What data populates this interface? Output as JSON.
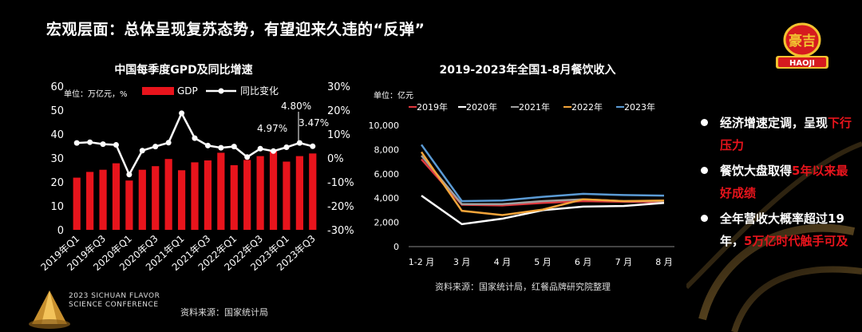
{
  "slide": {
    "title": "宏观层面：总体呈现复苏态势，有望迎来久违的“反弹”",
    "logo": {
      "cn": "豪吉",
      "en": "HAOJI"
    },
    "conference": [
      "2023 SICHUAN FLAVOR",
      "SCIENCE CONFERENCE"
    ],
    "source_left": "资料来源：国家统计局",
    "source_right": "资料来源：国家统计局，红餐品牌研究院整理"
  },
  "bullets": [
    {
      "white": "经济增速定调，呈现",
      "red": "下行压力",
      "rest": ""
    },
    {
      "white": "餐饮大盘取得",
      "red": "5年以来最好成绩",
      "rest": ""
    },
    {
      "white": "全年营收大概率超过19年，",
      "red": "5万亿时代触手可及",
      "rest": ""
    }
  ],
  "chart_data": [
    {
      "type": "bar",
      "title": "中国每季度GPD及同比增速",
      "unit_label": "单位：万亿元，%",
      "categories": [
        "2019年Q1",
        "2019年Q2",
        "2019年Q3",
        "2019年Q4",
        "2020年Q1",
        "2020年Q2",
        "2020年Q3",
        "2020年Q4",
        "2021年Q1",
        "2021年Q2",
        "2021年Q3",
        "2021年Q4",
        "2022年Q1",
        "2022年Q2",
        "2022年Q3",
        "2022年Q4",
        "2023年Q1",
        "2023年Q2",
        "2023年Q3"
      ],
      "x_tick_labels": [
        "2019年Q1",
        "2019年Q3",
        "2020年Q1",
        "2020年Q3",
        "2021年Q1",
        "2021年Q3",
        "2022年Q1",
        "2022年Q3",
        "2023年Q1",
        "2023年Q3"
      ],
      "series": [
        {
          "name": "GDP",
          "kind": "bar",
          "axis": "left",
          "color": "#e8141c",
          "values": [
            21.8,
            24.2,
            25.1,
            27.8,
            20.6,
            25.1,
            26.6,
            29.6,
            24.9,
            28.2,
            29.0,
            32.2,
            27.0,
            29.2,
            30.8,
            33.0,
            28.5,
            30.8,
            31.9
          ]
        },
        {
          "name": "同比变化",
          "kind": "line",
          "axis": "right",
          "color": "#ffffff",
          "values": [
            6.3,
            6.6,
            5.8,
            5.5,
            -6.9,
            3.1,
            4.8,
            6.4,
            18.7,
            8.3,
            5.2,
            4.3,
            4.8,
            0.4,
            3.9,
            2.9,
            4.5,
            6.3,
            4.9
          ]
        }
      ],
      "annotations": [
        "4.97%",
        "4.80%",
        "3.47%"
      ],
      "y_left": {
        "range": [
          0,
          60
        ],
        "ticks": [
          "0",
          "10",
          "20",
          "30",
          "40",
          "50",
          "60"
        ]
      },
      "y_right": {
        "range": [
          -30,
          30
        ],
        "ticks": [
          "-30%",
          "-20%",
          "-10%",
          "0%",
          "10%",
          "20%",
          "30%"
        ]
      }
    },
    {
      "type": "line",
      "title": "2019-2023年全国1-8月餐饮收入",
      "unit_label": "单位：亿元",
      "categories": [
        "1-2 月",
        "3 月",
        "4 月",
        "5 月",
        "6 月",
        "7 月",
        "8 月"
      ],
      "y_range": [
        0,
        10000
      ],
      "y_ticks": [
        "0",
        "2,000",
        "4,000",
        "6,000",
        "8,000",
        "10,000"
      ],
      "series": [
        {
          "name": "2019年",
          "color": "#e0383e",
          "values": [
            7200,
            3450,
            3400,
            3600,
            3750,
            3700,
            3650
          ]
        },
        {
          "name": "2020年",
          "color": "#ffffff",
          "values": [
            4200,
            1850,
            2300,
            3000,
            3300,
            3350,
            3600
          ]
        },
        {
          "name": "2021年",
          "color": "#a0a0a0",
          "values": [
            7500,
            3500,
            3500,
            3750,
            3900,
            3750,
            3750
          ]
        },
        {
          "name": "2022年",
          "color": "#f2a43a",
          "values": [
            7800,
            2950,
            2600,
            3050,
            3900,
            3750,
            3800
          ]
        },
        {
          "name": "2023年",
          "color": "#5b9bd5",
          "values": [
            8400,
            3750,
            3800,
            4100,
            4350,
            4250,
            4200
          ]
        }
      ]
    }
  ]
}
